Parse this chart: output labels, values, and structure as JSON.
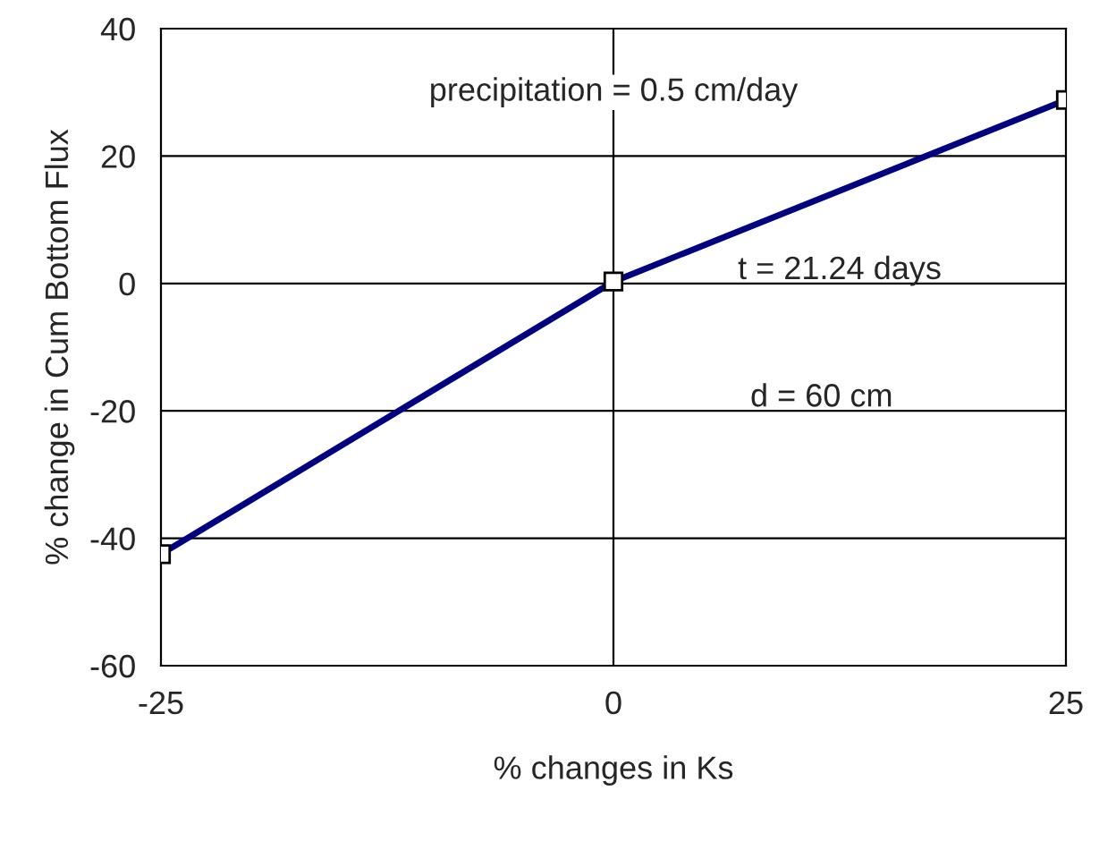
{
  "chart_data": {
    "type": "line",
    "xlabel": "% changes in Ks",
    "ylabel": "% change in Cum Bottom Flux",
    "x": [
      -25,
      0,
      25
    ],
    "series": [
      {
        "color": "#000080",
        "values": [
          -42.5,
          0.3,
          28.8
        ]
      }
    ],
    "xlim": [
      -25,
      25
    ],
    "xticks": [
      -25,
      0,
      25
    ],
    "ylim": [
      -60,
      40
    ],
    "yticks": [
      -60,
      -40,
      -20,
      0,
      20,
      40
    ],
    "grid": "y",
    "marker": "square",
    "line_style": "solid",
    "ref_lines": [
      {
        "axis": "x",
        "value": 0,
        "color": "#000000"
      }
    ],
    "annotations": [
      "precipitation = 0.5 cm/day",
      "t = 21.24 days",
      "d = 60 cm"
    ]
  }
}
